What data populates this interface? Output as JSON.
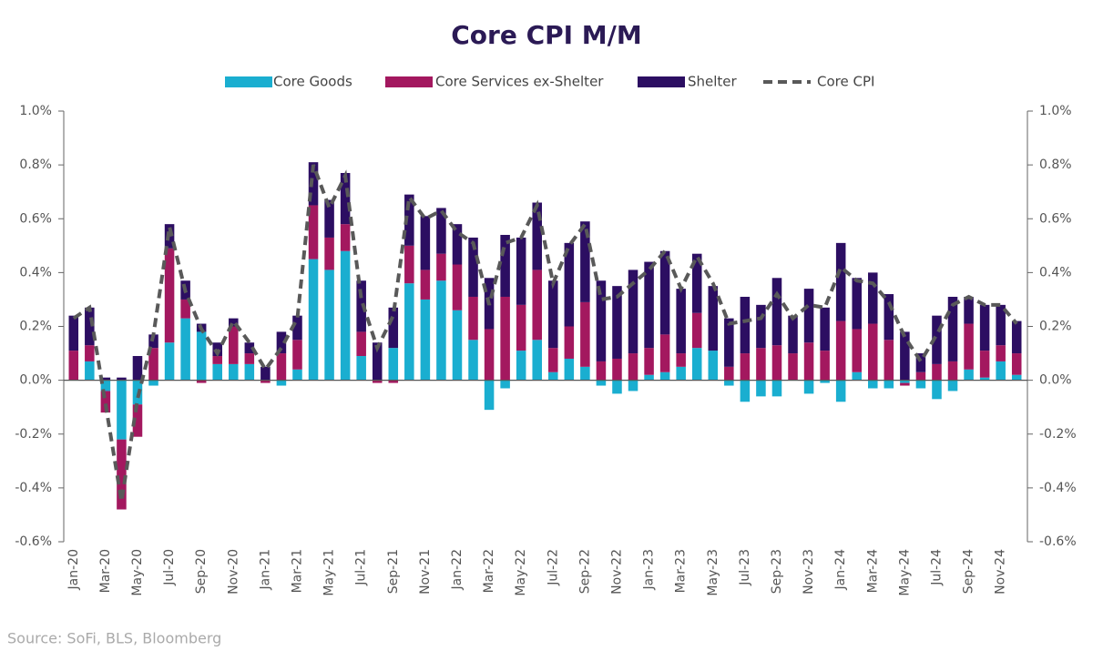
{
  "chart_data": {
    "type": "bar",
    "stacked": true,
    "title": "Core CPI M/M",
    "source": "Source: SoFi, BLS, Bloomberg",
    "categories": [
      "Jan-20",
      null,
      "Mar-20",
      null,
      "May-20",
      null,
      "Jul-20",
      null,
      "Sep-20",
      null,
      "Nov-20",
      null,
      "Jan-21",
      null,
      "Mar-21",
      null,
      "May-21",
      null,
      "Jul-21",
      null,
      "Sep-21",
      null,
      "Nov-21",
      null,
      "Jan-22",
      null,
      "Mar-22",
      null,
      "May-22",
      null,
      "Jul-22",
      null,
      "Sep-22",
      null,
      "Nov-22",
      null,
      "Jan-23",
      null,
      "Mar-23",
      null,
      "May-23",
      null,
      "Jul-23",
      null,
      "Sep-23",
      null,
      "Nov-23",
      null,
      "Jan-24",
      null,
      "Mar-24",
      null,
      "May-24",
      null,
      "Jul-24",
      null,
      "Sep-24",
      null,
      "Nov-24",
      null
    ],
    "series": [
      {
        "name": "Core Goods",
        "type": "bar",
        "color": "#1aaed0",
        "values": [
          0.0,
          0.07,
          -0.04,
          -0.22,
          -0.09,
          -0.02,
          0.14,
          0.23,
          0.18,
          0.06,
          0.06,
          0.06,
          0.0,
          -0.02,
          0.04,
          0.45,
          0.41,
          0.48,
          0.09,
          0.0,
          0.12,
          0.36,
          0.3,
          0.37,
          0.26,
          0.15,
          -0.11,
          -0.03,
          0.11,
          0.15,
          0.03,
          0.08,
          0.05,
          -0.02,
          -0.05,
          -0.04,
          0.02,
          0.03,
          0.05,
          0.12,
          0.11,
          -0.02,
          -0.08,
          -0.06,
          -0.06,
          0.0,
          -0.05,
          -0.01,
          -0.08,
          0.03,
          -0.03,
          -0.03,
          -0.01,
          -0.03,
          -0.07,
          -0.04,
          0.04,
          0.01,
          0.07,
          0.02
        ]
      },
      {
        "name": "Core Services ex-Shelter",
        "type": "bar",
        "color": "#a3185f",
        "values": [
          0.11,
          0.06,
          -0.08,
          -0.26,
          -0.12,
          0.12,
          0.35,
          0.07,
          -0.01,
          0.03,
          0.14,
          0.04,
          -0.01,
          0.1,
          0.11,
          0.2,
          0.12,
          0.1,
          0.09,
          -0.01,
          -0.01,
          0.14,
          0.11,
          0.1,
          0.17,
          0.16,
          0.19,
          0.31,
          0.17,
          0.26,
          0.09,
          0.12,
          0.24,
          0.07,
          0.08,
          0.1,
          0.1,
          0.14,
          0.05,
          0.13,
          0.0,
          0.05,
          0.1,
          0.12,
          0.13,
          0.1,
          0.14,
          0.11,
          0.22,
          0.16,
          0.21,
          0.15,
          -0.01,
          0.03,
          0.06,
          0.07,
          0.17,
          0.1,
          0.06,
          0.08
        ]
      },
      {
        "name": "Shelter",
        "type": "bar",
        "color": "#2c0e62",
        "values": [
          0.13,
          0.14,
          0.01,
          0.01,
          0.09,
          0.05,
          0.09,
          0.07,
          0.03,
          0.05,
          0.03,
          0.04,
          0.05,
          0.08,
          0.09,
          0.16,
          0.14,
          0.19,
          0.19,
          0.14,
          0.15,
          0.19,
          0.2,
          0.17,
          0.15,
          0.22,
          0.19,
          0.23,
          0.25,
          0.25,
          0.25,
          0.31,
          0.3,
          0.3,
          0.27,
          0.31,
          0.32,
          0.31,
          0.24,
          0.22,
          0.24,
          0.18,
          0.21,
          0.16,
          0.25,
          0.14,
          0.2,
          0.16,
          0.29,
          0.19,
          0.19,
          0.17,
          0.18,
          0.07,
          0.18,
          0.24,
          0.1,
          0.17,
          0.15,
          0.12
        ]
      },
      {
        "name": "Core CPI",
        "type": "line",
        "color": "#595959",
        "dashed": true,
        "values": [
          0.23,
          0.27,
          -0.09,
          -0.45,
          -0.07,
          0.17,
          0.57,
          0.33,
          0.19,
          0.1,
          0.22,
          0.14,
          0.04,
          0.12,
          0.23,
          0.8,
          0.64,
          0.76,
          0.3,
          0.12,
          0.24,
          0.68,
          0.6,
          0.63,
          0.55,
          0.51,
          0.28,
          0.51,
          0.53,
          0.65,
          0.36,
          0.5,
          0.58,
          0.3,
          0.31,
          0.36,
          0.41,
          0.48,
          0.34,
          0.46,
          0.36,
          0.21,
          0.22,
          0.23,
          0.32,
          0.23,
          0.28,
          0.27,
          0.42,
          0.37,
          0.36,
          0.29,
          0.16,
          0.07,
          0.17,
          0.28,
          0.31,
          0.28,
          0.28,
          0.21
        ]
      }
    ],
    "ylim": [
      -0.6,
      1.0
    ],
    "yticks": [
      {
        "value": -0.6,
        "label": "-0.6%"
      },
      {
        "value": -0.4,
        "label": "-0.4%"
      },
      {
        "value": -0.2,
        "label": "-0.2%"
      },
      {
        "value": 0.0,
        "label": "0.0%"
      },
      {
        "value": 0.2,
        "label": "0.2%"
      },
      {
        "value": 0.4,
        "label": "0.4%"
      },
      {
        "value": 0.6,
        "label": "0.6%"
      },
      {
        "value": 0.8,
        "label": "0.8%"
      },
      {
        "value": 1.0,
        "label": "1.0%"
      }
    ],
    "y2lim": [
      -0.6,
      1.0
    ],
    "y2ticks": [
      {
        "value": -0.6,
        "label": "-0.6%"
      },
      {
        "value": -0.4,
        "label": "-0.4%"
      },
      {
        "value": -0.2,
        "label": "-0.2%"
      },
      {
        "value": 0.0,
        "label": "0.0%"
      },
      {
        "value": 0.2,
        "label": "0.2%"
      },
      {
        "value": 0.4,
        "label": "0.4%"
      },
      {
        "value": 0.6,
        "label": "0.6%"
      },
      {
        "value": 0.8,
        "label": "0.8%"
      },
      {
        "value": 1.0,
        "label": "1.0%"
      }
    ],
    "legend": "top",
    "grid": false
  }
}
